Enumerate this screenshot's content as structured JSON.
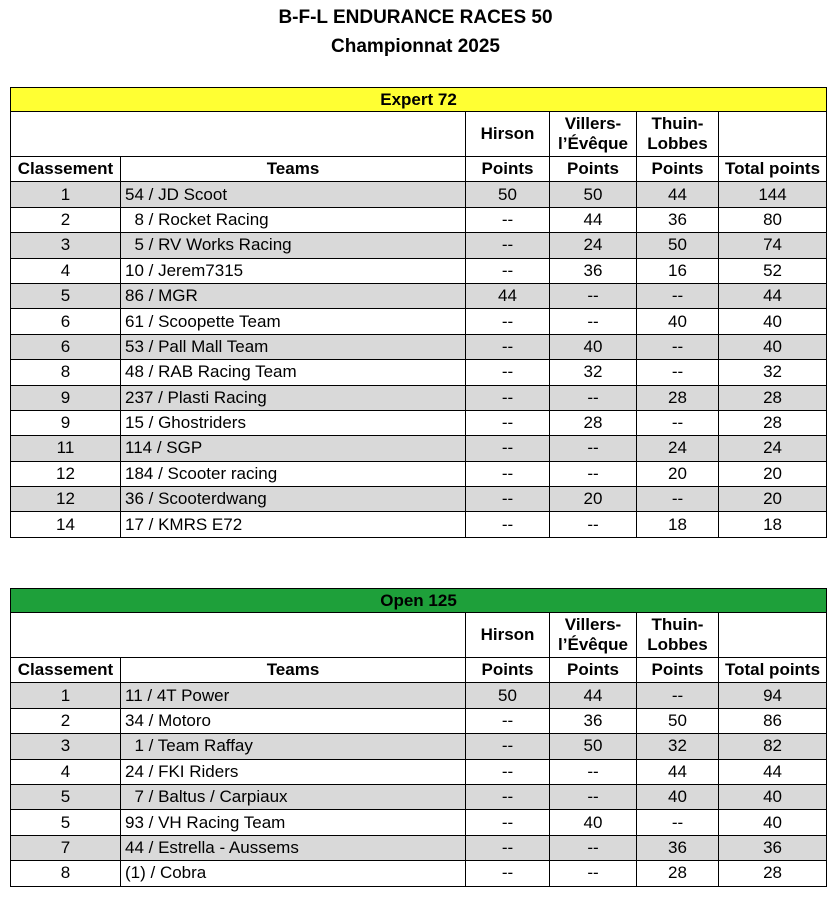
{
  "header": {
    "title": "B-F-L ENDURANCE RACES 50",
    "subtitle": "Championnat 2025"
  },
  "columns": {
    "rank": "Classement",
    "teams": "Teams",
    "races": [
      "Hirson",
      "Villers-\nl’Évêque",
      "Thuin-\nLobbes"
    ],
    "points": "Points",
    "total": "Total points"
  },
  "tables": [
    {
      "category": "Expert 72",
      "color": "#ffff33",
      "rows": [
        [
          "1",
          "54 / JD Scoot",
          "50",
          "50",
          "44",
          "144"
        ],
        [
          "2",
          "  8 / Rocket Racing",
          "--",
          "44",
          "36",
          "80"
        ],
        [
          "3",
          "  5 / RV Works Racing",
          "--",
          "24",
          "50",
          "74"
        ],
        [
          "4",
          "10 / Jerem7315",
          "--",
          "36",
          "16",
          "52"
        ],
        [
          "5",
          "86 / MGR",
          "44",
          "--",
          "--",
          "44"
        ],
        [
          "6",
          "61 / Scoopette Team",
          "--",
          "--",
          "40",
          "40"
        ],
        [
          "6",
          "53 / Pall Mall Team",
          "--",
          "40",
          "--",
          "40"
        ],
        [
          "8",
          "48 / RAB Racing Team",
          "--",
          "32",
          "--",
          "32"
        ],
        [
          "9",
          "237 / Plasti Racing",
          "--",
          "--",
          "28",
          "28"
        ],
        [
          "9",
          "15 / Ghostriders",
          "--",
          "28",
          "--",
          "28"
        ],
        [
          "11",
          "114 / SGP",
          "--",
          "--",
          "24",
          "24"
        ],
        [
          "12",
          "184 / Scooter racing",
          "--",
          "--",
          "20",
          "20"
        ],
        [
          "12",
          "36 / Scooterdwang",
          "--",
          "20",
          "--",
          "20"
        ],
        [
          "14",
          "17 / KMRS E72",
          "--",
          "--",
          "18",
          "18"
        ]
      ]
    },
    {
      "category": "Open 125",
      "color": "#1ea03a",
      "rows": [
        [
          "1",
          "11 / 4T Power",
          "50",
          "44",
          "--",
          "94"
        ],
        [
          "2",
          "34 / Motoro",
          "--",
          "36",
          "50",
          "86"
        ],
        [
          "3",
          "  1 / Team Raffay",
          "--",
          "50",
          "32",
          "82"
        ],
        [
          "4",
          "24 / FKI Riders",
          "--",
          "--",
          "44",
          "44"
        ],
        [
          "5",
          "  7 / Baltus / Carpiaux",
          "--",
          "--",
          "40",
          "40"
        ],
        [
          "5",
          "93 / VH Racing Team",
          "--",
          "40",
          "--",
          "40"
        ],
        [
          "7",
          "44 / Estrella - Aussems",
          "--",
          "--",
          "36",
          "36"
        ],
        [
          "8",
          "(1) / Cobra",
          "--",
          "--",
          "28",
          "28"
        ]
      ]
    }
  ]
}
